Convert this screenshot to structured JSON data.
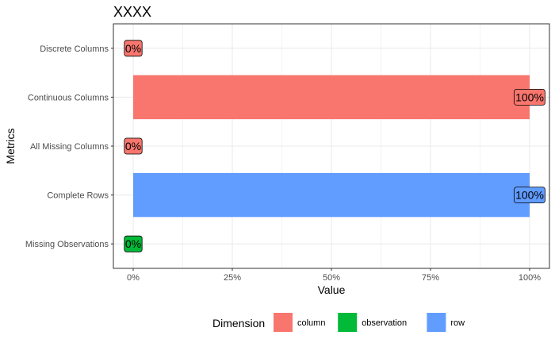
{
  "chart_data": {
    "type": "bar",
    "orientation": "horizontal",
    "title": "XXXX",
    "xlabel": "Value",
    "ylabel": "Metrics",
    "xlim": [
      0,
      1
    ],
    "x_ticks": [
      {
        "value": 0,
        "label": "0%"
      },
      {
        "value": 0.25,
        "label": "25%"
      },
      {
        "value": 0.5,
        "label": "50%"
      },
      {
        "value": 0.75,
        "label": "75%"
      },
      {
        "value": 1,
        "label": "100%"
      }
    ],
    "categories": [
      "Discrete Columns",
      "Continuous Columns",
      "All Missing Columns",
      "Complete Rows",
      "Missing Observations"
    ],
    "bars": [
      {
        "category": "Discrete Columns",
        "value": 0,
        "group": "column",
        "label": "0%"
      },
      {
        "category": "Continuous Columns",
        "value": 1,
        "group": "column",
        "label": "100%"
      },
      {
        "category": "All Missing Columns",
        "value": 0,
        "group": "column",
        "label": "0%"
      },
      {
        "category": "Complete Rows",
        "value": 1,
        "group": "row",
        "label": "100%"
      },
      {
        "category": "Missing Observations",
        "value": 0,
        "group": "observation",
        "label": "0%"
      }
    ],
    "legend": {
      "title": "Dimension",
      "position": "bottom",
      "entries": [
        {
          "name": "column",
          "color": "#F8766D"
        },
        {
          "name": "observation",
          "color": "#00BA38"
        },
        {
          "name": "row",
          "color": "#619CFF"
        }
      ]
    },
    "grid": true
  }
}
